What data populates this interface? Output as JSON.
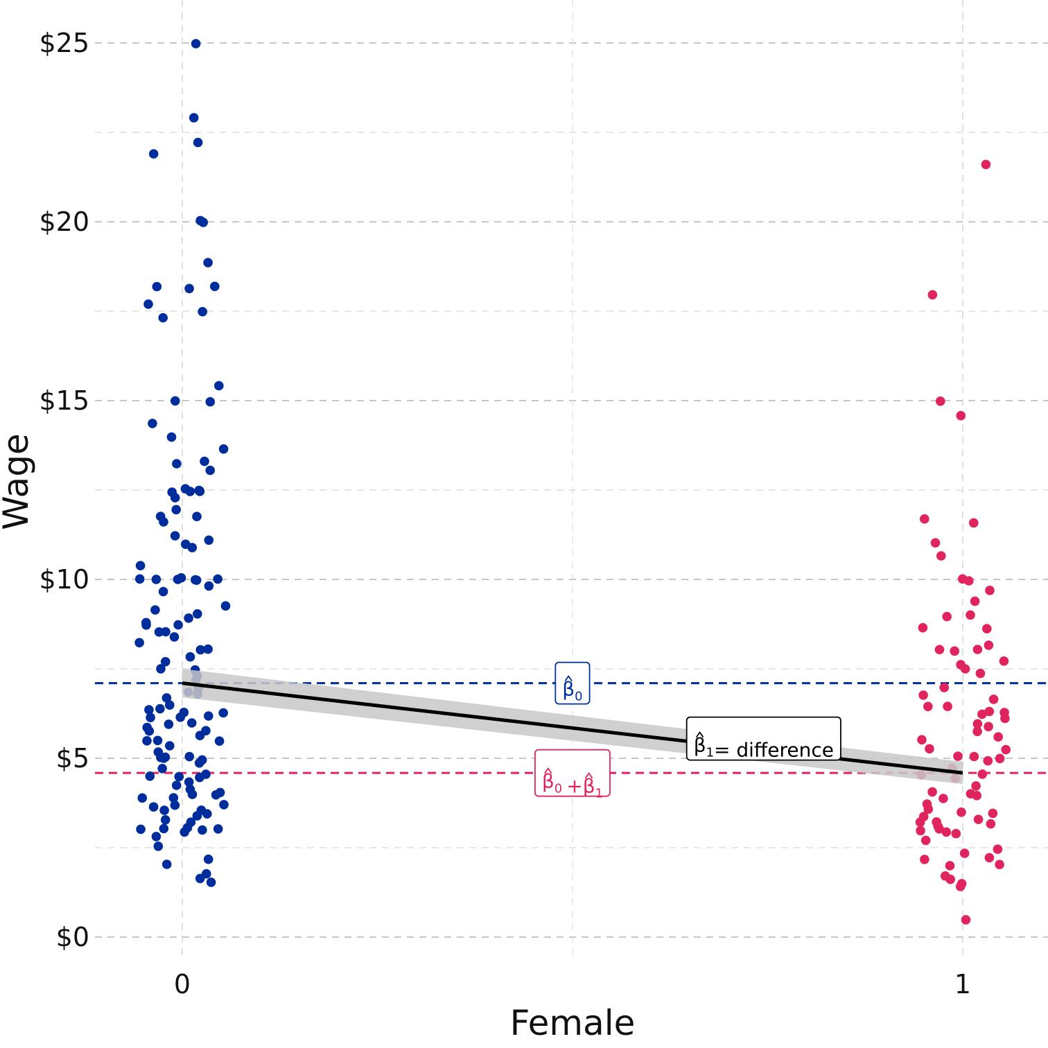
{
  "chart_data": {
    "type": "scatter",
    "xlabel": "Female",
    "ylabel": "Wage",
    "xlim": [
      -0.22,
      1.1
    ],
    "ylim": [
      -1.3,
      26.2
    ],
    "x_ticks": [
      0,
      1
    ],
    "x_tick_labels": [
      "0",
      "1"
    ],
    "y_ticks": [
      0,
      5,
      10,
      15,
      20,
      25
    ],
    "y_tick_labels": [
      "$0",
      "$5",
      "$10",
      "$15",
      "$20",
      "$25"
    ],
    "grid": true,
    "legend": "none",
    "colors": {
      "male": "#002d9c",
      "female": "#e0245e",
      "fit": "#000000",
      "band": "#c8c8c8"
    },
    "series": [
      {
        "x": 0,
        "values": [
          25.0,
          22.86,
          22.2,
          21.86,
          20.0,
          20.0,
          18.89,
          18.16,
          18.16,
          18.16,
          17.7,
          17.5,
          17.33,
          15.38,
          15.0,
          15.0,
          14.38,
          13.98,
          13.65,
          13.33,
          13.2,
          13.07,
          12.5,
          12.5,
          12.5,
          12.5,
          12.5,
          12.45,
          12.24,
          12.0,
          11.8,
          11.81,
          11.63,
          11.25,
          11.1,
          10.95,
          10.87,
          10.38,
          10.0,
          10.0,
          10.0,
          10.0,
          10.0,
          10.0,
          10.0,
          9.8,
          9.63,
          9.26,
          9.14,
          9.0,
          8.9,
          8.75,
          8.75,
          8.7,
          8.5,
          8.5,
          8.4,
          8.25,
          8.0,
          8.0,
          7.8,
          7.75,
          7.5,
          7.45,
          7.3,
          7.14,
          7.0,
          6.88,
          6.8,
          6.67,
          6.5,
          6.4,
          6.35,
          6.25,
          6.25,
          6.2,
          6.15,
          6.1,
          6.0,
          6.0,
          5.9,
          5.8,
          5.75,
          5.65,
          5.5,
          5.5,
          5.45,
          5.3,
          5.2,
          5.0,
          5.0,
          5.0,
          5.0,
          4.95,
          4.85,
          4.75,
          4.6,
          4.5,
          4.5,
          4.45,
          4.35,
          4.25,
          4.15,
          4.0,
          4.0,
          4.0,
          3.9,
          3.85,
          3.75,
          3.7,
          3.6,
          3.5,
          3.5,
          3.45,
          3.35,
          3.25,
          3.2,
          3.1,
          3.0,
          3.0,
          3.0,
          2.95,
          2.9,
          2.85,
          2.5,
          2.2,
          2.0,
          1.75,
          1.67,
          1.5
        ]
      },
      {
        "x": 1,
        "values": [
          21.63,
          18.0,
          15.0,
          14.58,
          11.71,
          11.54,
          11.07,
          10.63,
          10.0,
          10.0,
          9.7,
          9.38,
          9.0,
          9.0,
          8.63,
          8.6,
          8.13,
          8.07,
          8.0,
          8.0,
          7.7,
          7.6,
          7.5,
          7.35,
          7.0,
          6.8,
          6.65,
          6.5,
          6.4,
          6.3,
          6.25,
          6.2,
          6.1,
          6.0,
          5.9,
          5.75,
          5.6,
          5.5,
          5.3,
          5.25,
          5.1,
          5.0,
          5.0,
          4.9,
          4.75,
          4.6,
          4.5,
          4.4,
          4.25,
          4.1,
          4.0,
          4.0,
          3.9,
          3.75,
          3.6,
          3.5,
          3.45,
          3.35,
          3.3,
          3.25,
          3.2,
          3.15,
          3.1,
          3.0,
          3.0,
          2.95,
          2.9,
          2.75,
          2.5,
          2.3,
          2.25,
          2.2,
          2.0,
          1.95,
          1.75,
          1.6,
          1.5,
          1.4,
          0.53
        ]
      }
    ],
    "regression": {
      "x": [
        0,
        1
      ],
      "y": [
        7.1,
        4.59
      ],
      "ci": [
        [
          6.7,
          7.5
        ],
        [
          4.28,
          4.9
        ]
      ]
    },
    "reference_lines": [
      {
        "y": 7.1,
        "color": "#002d9c"
      },
      {
        "y": 4.59,
        "color": "#e0245e"
      }
    ],
    "annotations": [
      {
        "parts": [
          {
            "b": "β",
            "sub": "0"
          }
        ],
        "x": 0.5,
        "y": 7.1,
        "color": "#002d9c"
      },
      {
        "parts": [
          {
            "b": "β",
            "sub": "0"
          },
          {
            "op": "+"
          },
          {
            "b": "β",
            "sub": "1"
          }
        ],
        "x": 0.5,
        "y": 4.59,
        "color": "#e0245e"
      },
      {
        "parts": [
          {
            "b": "β",
            "sub": "1"
          }
        ],
        "suffix": "= difference",
        "x": 0.745,
        "y": 5.55,
        "color": "#000000"
      }
    ]
  }
}
